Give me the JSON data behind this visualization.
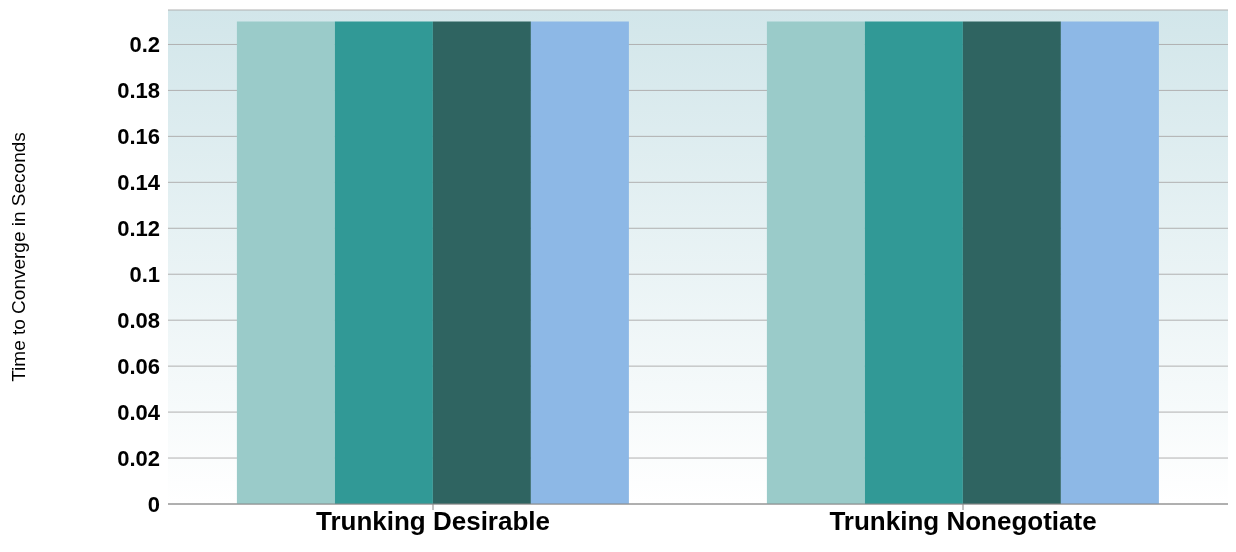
{
  "chart_data": {
    "type": "bar",
    "ylabel": "Time to Converge in Seconds",
    "categories": [
      "Trunking Desirable",
      "Trunking Nonegotiate"
    ],
    "series": [
      {
        "color": "#9acbc9",
        "values": [
          0.21,
          0.21
        ]
      },
      {
        "color": "#319996",
        "values": [
          0.21,
          0.21
        ]
      },
      {
        "color": "#2f6461",
        "values": [
          0.21,
          0.21
        ]
      },
      {
        "color": "#8db8e6",
        "values": [
          0.21,
          0.21
        ]
      }
    ],
    "ylim": [
      0,
      0.215
    ],
    "yticks": [
      0,
      0.02,
      0.04,
      0.06,
      0.08,
      0.1,
      0.12,
      0.14,
      0.16,
      0.18,
      0.2
    ],
    "grid": "y",
    "legend": false
  }
}
